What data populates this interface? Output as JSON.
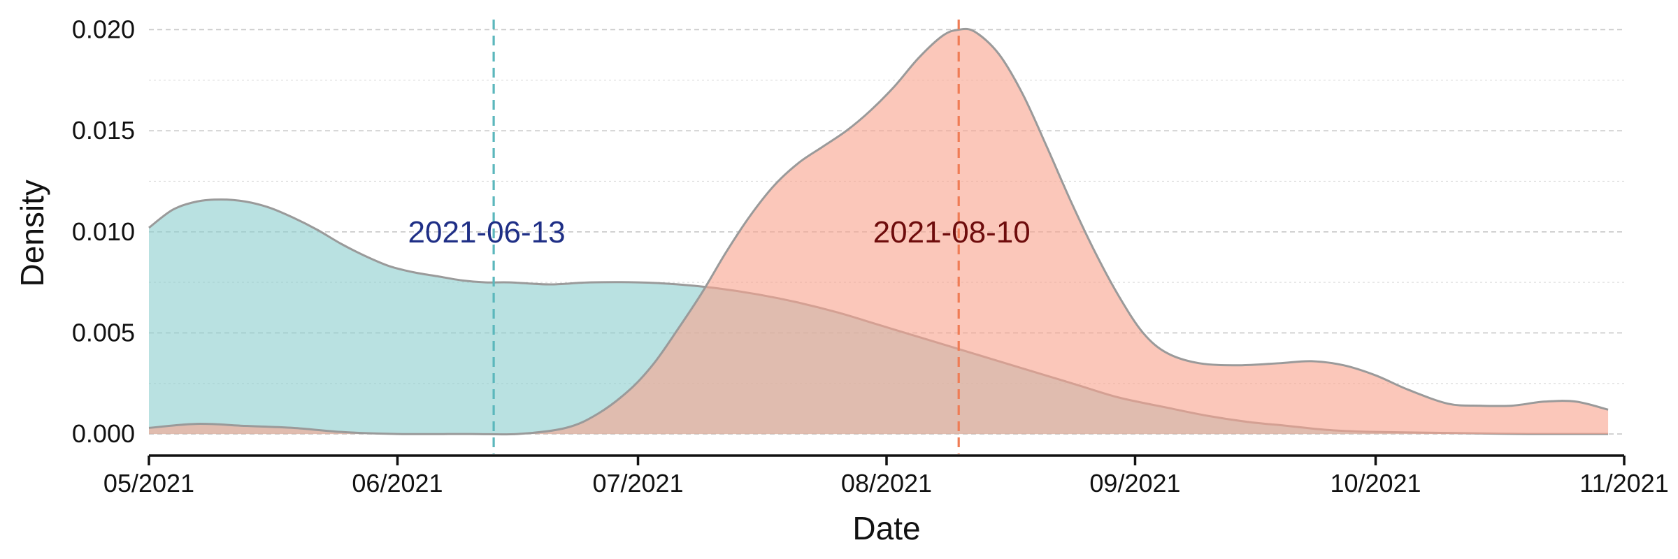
{
  "chart_data": {
    "type": "area",
    "xlabel": "Date",
    "ylabel": "Density",
    "xlim": [
      "2021-05-01",
      "2021-11-01"
    ],
    "ylim": [
      -0.001,
      0.0205
    ],
    "x_ticks": [
      {
        "date": "2021-05-01",
        "label": "05/2021"
      },
      {
        "date": "2021-06-01",
        "label": "06/2021"
      },
      {
        "date": "2021-07-01",
        "label": "07/2021"
      },
      {
        "date": "2021-08-01",
        "label": "08/2021"
      },
      {
        "date": "2021-09-01",
        "label": "09/2021"
      },
      {
        "date": "2021-10-01",
        "label": "10/2021"
      },
      {
        "date": "2021-11-01",
        "label": "11/2021"
      }
    ],
    "y_ticks": [
      {
        "value": 0.0,
        "label": "0.000"
      },
      {
        "value": 0.005,
        "label": "0.005"
      },
      {
        "value": 0.01,
        "label": "0.010"
      },
      {
        "value": 0.015,
        "label": "0.015"
      },
      {
        "value": 0.02,
        "label": "0.020"
      }
    ],
    "grid": true,
    "series": [
      {
        "color": "#8ecfcf",
        "median_line_color": "#5bb7bc",
        "label_color": "#1f2f86",
        "median": "2021-06-13",
        "median_label": "2021-06-13",
        "points": [
          [
            "2021-05-01",
            0.0102
          ],
          [
            "2021-05-04",
            0.0111
          ],
          [
            "2021-05-07",
            0.0115
          ],
          [
            "2021-05-10",
            0.0116
          ],
          [
            "2021-05-13",
            0.0115
          ],
          [
            "2021-05-16",
            0.0112
          ],
          [
            "2021-05-19",
            0.0107
          ],
          [
            "2021-05-22",
            0.0101
          ],
          [
            "2021-05-25",
            0.0094
          ],
          [
            "2021-05-28",
            0.0088
          ],
          [
            "2021-05-31",
            0.0083
          ],
          [
            "2021-06-03",
            0.008
          ],
          [
            "2021-06-06",
            0.0078
          ],
          [
            "2021-06-09",
            0.0076
          ],
          [
            "2021-06-12",
            0.0075
          ],
          [
            "2021-06-15",
            0.0075
          ],
          [
            "2021-06-20",
            0.0074
          ],
          [
            "2021-06-25",
            0.0075
          ],
          [
            "2021-07-01",
            0.0075
          ],
          [
            "2021-07-06",
            0.0074
          ],
          [
            "2021-07-11",
            0.0072
          ],
          [
            "2021-07-16",
            0.0069
          ],
          [
            "2021-07-21",
            0.0065
          ],
          [
            "2021-07-26",
            0.006
          ],
          [
            "2021-07-31",
            0.0054
          ],
          [
            "2021-08-05",
            0.0048
          ],
          [
            "2021-08-10",
            0.0042
          ],
          [
            "2021-08-15",
            0.0036
          ],
          [
            "2021-08-20",
            0.003
          ],
          [
            "2021-08-25",
            0.0024
          ],
          [
            "2021-08-30",
            0.0018
          ],
          [
            "2021-09-05",
            0.0013
          ],
          [
            "2021-09-10",
            0.0009
          ],
          [
            "2021-09-15",
            0.0006
          ],
          [
            "2021-09-20",
            0.0004
          ],
          [
            "2021-09-25",
            0.0002
          ],
          [
            "2021-10-01",
            0.0001
          ],
          [
            "2021-10-10",
            5e-05
          ],
          [
            "2021-10-20",
            0.0
          ],
          [
            "2021-10-30",
            0.0
          ]
        ]
      },
      {
        "color": "#f8a58f",
        "median_line_color": "#ef7c55",
        "label_color": "#6e0c0c",
        "median": "2021-08-10",
        "median_label": "2021-08-10",
        "points": [
          [
            "2021-05-01",
            0.0003
          ],
          [
            "2021-05-07",
            0.0005
          ],
          [
            "2021-05-13",
            0.0004
          ],
          [
            "2021-05-19",
            0.0003
          ],
          [
            "2021-05-25",
            0.0001
          ],
          [
            "2021-06-01",
            0.0
          ],
          [
            "2021-06-10",
            0.0
          ],
          [
            "2021-06-16",
            0.0
          ],
          [
            "2021-06-22",
            0.0003
          ],
          [
            "2021-06-26",
            0.001
          ],
          [
            "2021-06-30",
            0.0022
          ],
          [
            "2021-07-03",
            0.0035
          ],
          [
            "2021-07-06",
            0.0052
          ],
          [
            "2021-07-09",
            0.007
          ],
          [
            "2021-07-12",
            0.009
          ],
          [
            "2021-07-15",
            0.0108
          ],
          [
            "2021-07-18",
            0.0123
          ],
          [
            "2021-07-21",
            0.0134
          ],
          [
            "2021-07-24",
            0.0142
          ],
          [
            "2021-07-27",
            0.015
          ],
          [
            "2021-07-30",
            0.016
          ],
          [
            "2021-08-02",
            0.0172
          ],
          [
            "2021-08-05",
            0.0186
          ],
          [
            "2021-08-08",
            0.0197
          ],
          [
            "2021-08-10",
            0.02
          ],
          [
            "2021-08-12",
            0.0199
          ],
          [
            "2021-08-15",
            0.0188
          ],
          [
            "2021-08-18",
            0.0168
          ],
          [
            "2021-08-21",
            0.0142
          ],
          [
            "2021-08-24",
            0.0115
          ],
          [
            "2021-08-27",
            0.009
          ],
          [
            "2021-08-30",
            0.0068
          ],
          [
            "2021-09-02",
            0.005
          ],
          [
            "2021-09-05",
            0.004
          ],
          [
            "2021-09-09",
            0.0035
          ],
          [
            "2021-09-14",
            0.0034
          ],
          [
            "2021-09-19",
            0.0035
          ],
          [
            "2021-09-23",
            0.0036
          ],
          [
            "2021-09-27",
            0.0034
          ],
          [
            "2021-10-01",
            0.0029
          ],
          [
            "2021-10-05",
            0.0022
          ],
          [
            "2021-10-10",
            0.0015
          ],
          [
            "2021-10-14",
            0.0014
          ],
          [
            "2021-10-18",
            0.0014
          ],
          [
            "2021-10-22",
            0.0016
          ],
          [
            "2021-10-26",
            0.0016
          ],
          [
            "2021-10-30",
            0.0012
          ]
        ]
      }
    ]
  }
}
